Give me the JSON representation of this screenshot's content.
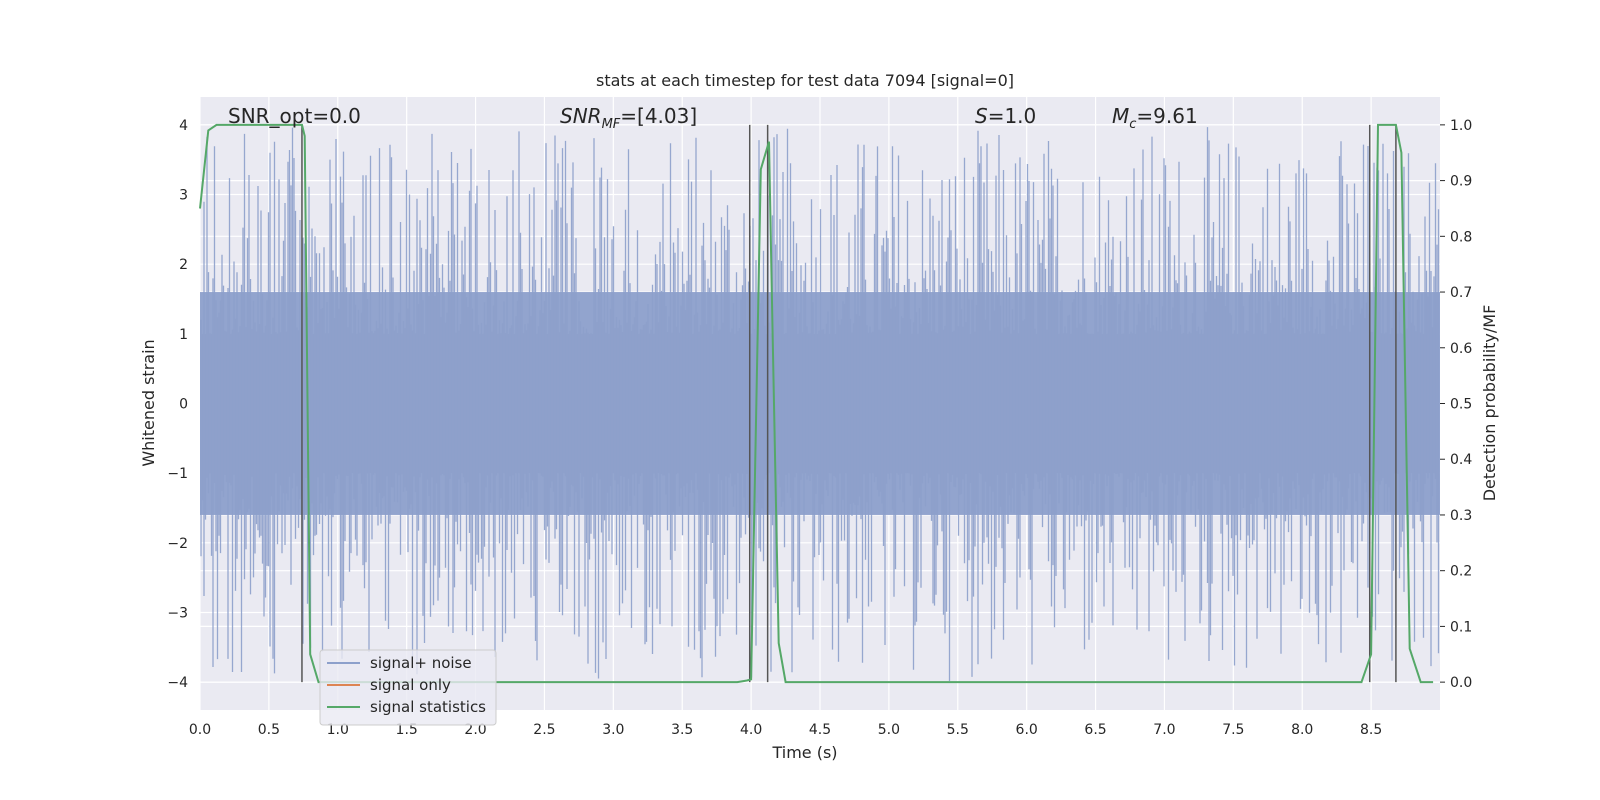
{
  "chart_data": {
    "type": "line",
    "title": "stats at each timestep for test data 7094 [signal=0]",
    "xlabel": "Time (s)",
    "ylabel": "Whitened strain",
    "y2label": "Detection probability/MF",
    "xlim": [
      0.0,
      9.0
    ],
    "ylim": [
      -4.4,
      4.4
    ],
    "y2lim": [
      -0.05,
      1.05
    ],
    "xticks": [
      "0.0",
      "0.5",
      "1.0",
      "1.5",
      "2.0",
      "2.5",
      "3.0",
      "3.5",
      "4.0",
      "4.5",
      "5.0",
      "5.5",
      "6.0",
      "6.5",
      "7.0",
      "7.5",
      "8.0",
      "8.5"
    ],
    "xtick_values": [
      0.0,
      0.5,
      1.0,
      1.5,
      2.0,
      2.5,
      3.0,
      3.5,
      4.0,
      4.5,
      5.0,
      5.5,
      6.0,
      6.5,
      7.0,
      7.5,
      8.0,
      8.5
    ],
    "yticks": [
      "−4",
      "−3",
      "−2",
      "−1",
      "0",
      "1",
      "2",
      "3",
      "4"
    ],
    "ytick_values": [
      -4,
      -3,
      -2,
      -1,
      0,
      1,
      2,
      3,
      4
    ],
    "y2ticks": [
      "0.0",
      "0.1",
      "0.2",
      "0.3",
      "0.4",
      "0.5",
      "0.6",
      "0.7",
      "0.8",
      "0.9",
      "1.0"
    ],
    "y2tick_values": [
      0.0,
      0.1,
      0.2,
      0.3,
      0.4,
      0.5,
      0.6,
      0.7,
      0.8,
      0.9,
      1.0
    ],
    "grid": true,
    "legend_position": "bottom-left",
    "series": [
      {
        "name": "signal+ noise",
        "color": "#8da0cb",
        "kind": "noise-strain",
        "band": [
          -1.6,
          1.6
        ],
        "peak_max": 4.0,
        "peak_min": -4.0
      },
      {
        "name": "signal only",
        "color": "#dd8452",
        "values": []
      },
      {
        "name": "signal statistics",
        "color": "#55a868",
        "axis": "right",
        "x": [
          0.0,
          0.06,
          0.12,
          0.2,
          0.3,
          0.5,
          0.7,
          0.74,
          0.76,
          0.8,
          0.86,
          0.95,
          1.2,
          2.0,
          3.0,
          3.9,
          3.97,
          4.0,
          4.07,
          4.13,
          4.15,
          4.2,
          4.25,
          4.4,
          5.0,
          6.0,
          7.0,
          8.0,
          8.43,
          8.5,
          8.55,
          8.6,
          8.68,
          8.72,
          8.78,
          8.86,
          8.95
        ],
        "values": [
          0.85,
          0.99,
          1.0,
          1.0,
          1.0,
          1.0,
          1.0,
          1.0,
          0.98,
          0.05,
          0.0,
          0.0,
          0.0,
          0.0,
          0.0,
          0.0,
          0.003,
          0.005,
          0.92,
          0.97,
          0.7,
          0.07,
          0.0,
          0.0,
          0.0,
          0.0,
          0.0,
          0.0,
          0.0,
          0.05,
          1.0,
          1.0,
          1.0,
          0.95,
          0.06,
          0.0,
          0.0
        ]
      }
    ],
    "vlines": [
      0.74,
      3.99,
      4.12,
      8.49,
      8.68
    ],
    "vline_color": "#555555",
    "annotations": [
      {
        "key": "snr_opt",
        "text": "SNR_opt=0.0"
      },
      {
        "key": "snr_mf",
        "text": "SNR_MF=[4.03]"
      },
      {
        "key": "s",
        "text": "S=1.0"
      },
      {
        "key": "mc",
        "text": "M_c=9.61"
      }
    ]
  },
  "style": {
    "plot_bg": "#eaeaf2",
    "grid_color": "#ffffff"
  }
}
